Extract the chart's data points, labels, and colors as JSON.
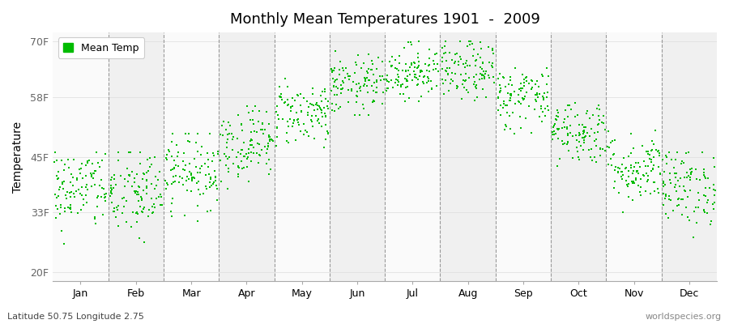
{
  "title": "Monthly Mean Temperatures 1901  -  2009",
  "ylabel": "Temperature",
  "xlabel": "",
  "months": [
    "Jan",
    "Feb",
    "Mar",
    "Apr",
    "May",
    "Jun",
    "Jul",
    "Aug",
    "Sep",
    "Oct",
    "Nov",
    "Dec"
  ],
  "yticks": [
    20,
    33,
    45,
    58,
    70
  ],
  "ytick_labels": [
    "20F",
    "33F",
    "45F",
    "58F",
    "70F"
  ],
  "ylim": [
    18,
    72
  ],
  "xlim": [
    0,
    12
  ],
  "dot_color": "#00bb00",
  "bg_color": "#ffffff",
  "stripe_color_odd": "#f0f0f0",
  "stripe_color_even": "#fafafa",
  "legend_label": "Mean Temp",
  "bottom_left_text": "Latitude 50.75 Longitude 2.75",
  "bottom_right_text": "worldspecies.org",
  "n_years": 109,
  "monthly_mean_F": [
    38.0,
    37.0,
    42.0,
    48.0,
    54.5,
    60.5,
    63.5,
    63.5,
    58.0,
    50.5,
    42.5,
    38.5
  ],
  "monthly_std_F": [
    4.5,
    5.0,
    4.0,
    4.0,
    3.5,
    3.2,
    3.0,
    3.2,
    3.5,
    3.5,
    3.8,
    4.2
  ],
  "monthly_min_F": [
    22.0,
    20.0,
    31.0,
    38.0,
    47.0,
    54.0,
    57.0,
    56.0,
    50.0,
    43.0,
    33.0,
    27.0
  ],
  "monthly_max_F": [
    46.0,
    46.0,
    50.0,
    56.0,
    62.0,
    68.0,
    70.0,
    70.0,
    65.0,
    58.0,
    51.0,
    46.0
  ]
}
